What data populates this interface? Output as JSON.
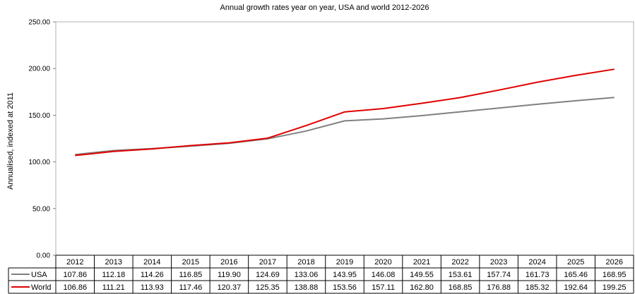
{
  "chart_data": {
    "type": "line",
    "title": "Annual growth rates year on year, USA and world 2012-2026",
    "xlabel": "",
    "ylabel": "Annualised, indexed at 2011",
    "ylim": [
      0,
      250
    ],
    "yticks": [
      "0.00",
      "50.00",
      "100.00",
      "150.00",
      "200.00",
      "250.00"
    ],
    "x": [
      "2012",
      "2013",
      "2014",
      "2015",
      "2016",
      "2017",
      "2018",
      "2019",
      "2020",
      "2021",
      "2022",
      "2023",
      "2024",
      "2025",
      "2026"
    ],
    "series": [
      {
        "name": "USA",
        "color": "#808080",
        "values": [
          107.86,
          112.18,
          114.26,
          116.85,
          119.9,
          124.69,
          133.06,
          143.95,
          146.08,
          149.55,
          153.61,
          157.74,
          161.73,
          165.46,
          168.95
        ],
        "labels": [
          "107.86",
          "112.18",
          "114.26",
          "116.85",
          "119.90",
          "124.69",
          "133.06",
          "143.95",
          "146.08",
          "149.55",
          "153.61",
          "157.74",
          "161.73",
          "165.46",
          "168.95"
        ]
      },
      {
        "name": "World",
        "color": "#e00000",
        "values": [
          106.86,
          111.21,
          113.93,
          117.46,
          120.37,
          125.35,
          138.88,
          153.56,
          157.11,
          162.8,
          168.85,
          176.88,
          185.32,
          192.64,
          199.25
        ],
        "labels": [
          "106.86",
          "111.21",
          "113.93",
          "117.46",
          "120.37",
          "125.35",
          "138.88",
          "153.56",
          "157.11",
          "162.80",
          "168.85",
          "176.88",
          "185.32",
          "192.64",
          "199.25"
        ]
      }
    ],
    "grid": false,
    "legend": "data-table"
  }
}
